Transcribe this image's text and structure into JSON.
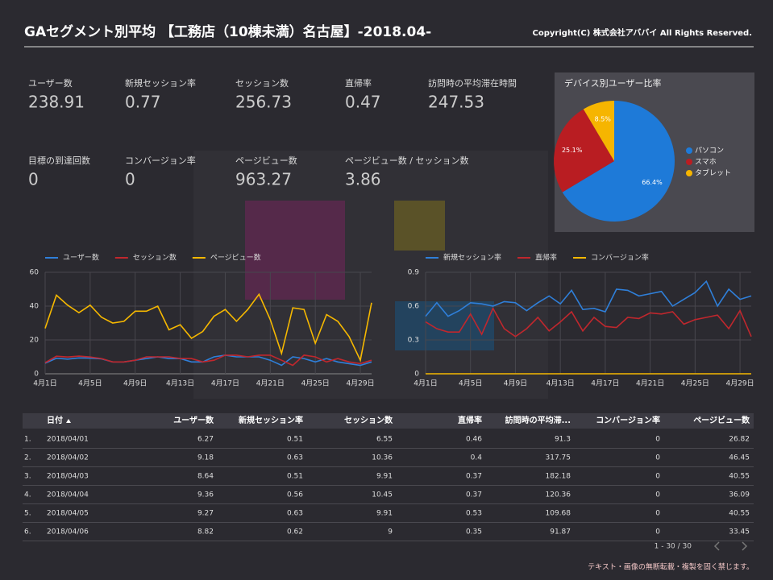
{
  "header": {
    "title": "GAセグメント別平均 【工務店（10棟未満）名古屋】-2018.04-",
    "copyright": "Copyright(C) 株式会社アババイ All Rights Reserved."
  },
  "kpis": [
    {
      "label": "ユーザー数",
      "value": 238.91
    },
    {
      "label": "新規セッション率",
      "value": 0.77
    },
    {
      "label": "セッション数",
      "value": 256.73
    },
    {
      "label": "直帰率",
      "value": 0.47
    },
    {
      "label": "訪問時の平均滞在時間",
      "value": 247.53
    },
    {
      "label": "目標の到達回数",
      "value": 0
    },
    {
      "label": "コンバージョン率",
      "value": 0
    },
    {
      "label": "ページビュー数",
      "value": 963.27
    },
    {
      "label": "ページビュー数 / セッション数",
      "value": 3.86
    }
  ],
  "chart_data": [
    {
      "type": "pie",
      "title": "デバイス別ユーザー比率",
      "categories": [
        "パソコン",
        "スマホ",
        "タブレット"
      ],
      "values": [
        66.4,
        25.1,
        8.5
      ],
      "value_labels": [
        "66.4%",
        "25.1%",
        "8.5%"
      ],
      "colors": [
        "#1e7ad8",
        "#b91d22",
        "#f6b500"
      ],
      "legend": "right"
    },
    {
      "type": "line",
      "categories": [
        "4月1日",
        null,
        null,
        null,
        "4月5日",
        null,
        null,
        null,
        "4月9日",
        null,
        null,
        null,
        "4月13日",
        null,
        null,
        null,
        "4月17日",
        null,
        null,
        null,
        "4月21日",
        null,
        null,
        null,
        "4月25日",
        null,
        null,
        null,
        "4月29日",
        null
      ],
      "ylim": [
        0,
        60
      ],
      "yticks": [
        0,
        20,
        40,
        60
      ],
      "grid": true,
      "legend": "top",
      "series": [
        {
          "name": "ユーザー数",
          "color": "#2f7fd9",
          "values": [
            6.27,
            9.18,
            8.64,
            9.36,
            9.27,
            8.82,
            7,
            7,
            8,
            9,
            10,
            9,
            9,
            7,
            7,
            10,
            11,
            10,
            10,
            10,
            8,
            5,
            10,
            9,
            7,
            9,
            7,
            6,
            5,
            7
          ]
        },
        {
          "name": "セッション数",
          "color": "#c0272d",
          "values": [
            6.55,
            10.36,
            9.91,
            10.45,
            9.91,
            9,
            7,
            7,
            8,
            10,
            10,
            10,
            9,
            9,
            7,
            8,
            11,
            11,
            10,
            11,
            11,
            8,
            5,
            11,
            10,
            7,
            9,
            7,
            6,
            8
          ]
        },
        {
          "name": "ページビュー数",
          "color": "#f6b800",
          "values": [
            26.82,
            46.45,
            40.55,
            36.09,
            40.55,
            33.45,
            30,
            31,
            37,
            37,
            40,
            26,
            29,
            21,
            25,
            34,
            38,
            31,
            38,
            47,
            32,
            12,
            39,
            38,
            18,
            35,
            31,
            22,
            8,
            42
          ]
        }
      ]
    },
    {
      "type": "line",
      "categories": [
        "4月1日",
        null,
        null,
        null,
        "4月5日",
        null,
        null,
        null,
        "4月9日",
        null,
        null,
        null,
        "4月13日",
        null,
        null,
        null,
        "4月17日",
        null,
        null,
        null,
        "4月21日",
        null,
        null,
        null,
        "4月25日",
        null,
        null,
        null,
        "4月29日",
        null
      ],
      "ylim": [
        0,
        0.9
      ],
      "yticks": [
        0,
        0.3,
        0.6,
        0.9
      ],
      "grid": true,
      "legend": "top",
      "series": [
        {
          "name": "新規セッション率",
          "color": "#2f7fd9",
          "values": [
            0.51,
            0.63,
            0.51,
            0.56,
            0.63,
            0.62,
            0.6,
            0.64,
            0.63,
            0.56,
            0.63,
            0.69,
            0.62,
            0.74,
            0.57,
            0.58,
            0.55,
            0.75,
            0.74,
            0.69,
            0.71,
            0.73,
            0.6,
            0.66,
            0.72,
            0.82,
            0.6,
            0.75,
            0.66,
            0.69
          ]
        },
        {
          "name": "直帰率",
          "color": "#c0272d",
          "values": [
            0.46,
            0.4,
            0.37,
            0.37,
            0.53,
            0.35,
            0.58,
            0.4,
            0.33,
            0.4,
            0.5,
            0.38,
            0.46,
            0.55,
            0.38,
            0.5,
            0.42,
            0.41,
            0.5,
            0.49,
            0.54,
            0.53,
            0.55,
            0.44,
            0.48,
            0.5,
            0.52,
            0.4,
            0.56,
            0.33
          ]
        },
        {
          "name": "コンバージョン率",
          "color": "#f6b800",
          "values": [
            0,
            0,
            0,
            0,
            0,
            0,
            0,
            0,
            0,
            0,
            0,
            0,
            0,
            0,
            0,
            0,
            0,
            0,
            0,
            0,
            0,
            0,
            0,
            0,
            0,
            0,
            0,
            0,
            0,
            0
          ]
        }
      ]
    }
  ],
  "table": {
    "columns": [
      "日付",
      "ユーザー数",
      "新規セッション率",
      "セッション数",
      "直帰率",
      "訪問時の平均滞...",
      "コンバージョン率",
      "ページビュー数"
    ],
    "rows": [
      [
        "1.",
        "2018/04/01",
        6.27,
        0.51,
        6.55,
        0.46,
        91.3,
        0,
        26.82
      ],
      [
        "2.",
        "2018/04/02",
        9.18,
        0.63,
        10.36,
        0.4,
        317.75,
        0,
        46.45
      ],
      [
        "3.",
        "2018/04/03",
        8.64,
        0.51,
        9.91,
        0.37,
        182.18,
        0,
        40.55
      ],
      [
        "4.",
        "2018/04/04",
        9.36,
        0.56,
        10.45,
        0.37,
        120.36,
        0,
        36.09
      ],
      [
        "5.",
        "2018/04/05",
        9.27,
        0.63,
        9.91,
        0.53,
        109.68,
        0,
        40.55
      ],
      [
        "6.",
        "2018/04/06",
        8.82,
        0.62,
        9,
        0.35,
        91.87,
        0,
        33.45
      ]
    ]
  },
  "pagination": "1 - 30 / 30",
  "footer": "テキスト・画像の無断転載・複製を固く禁じます。"
}
